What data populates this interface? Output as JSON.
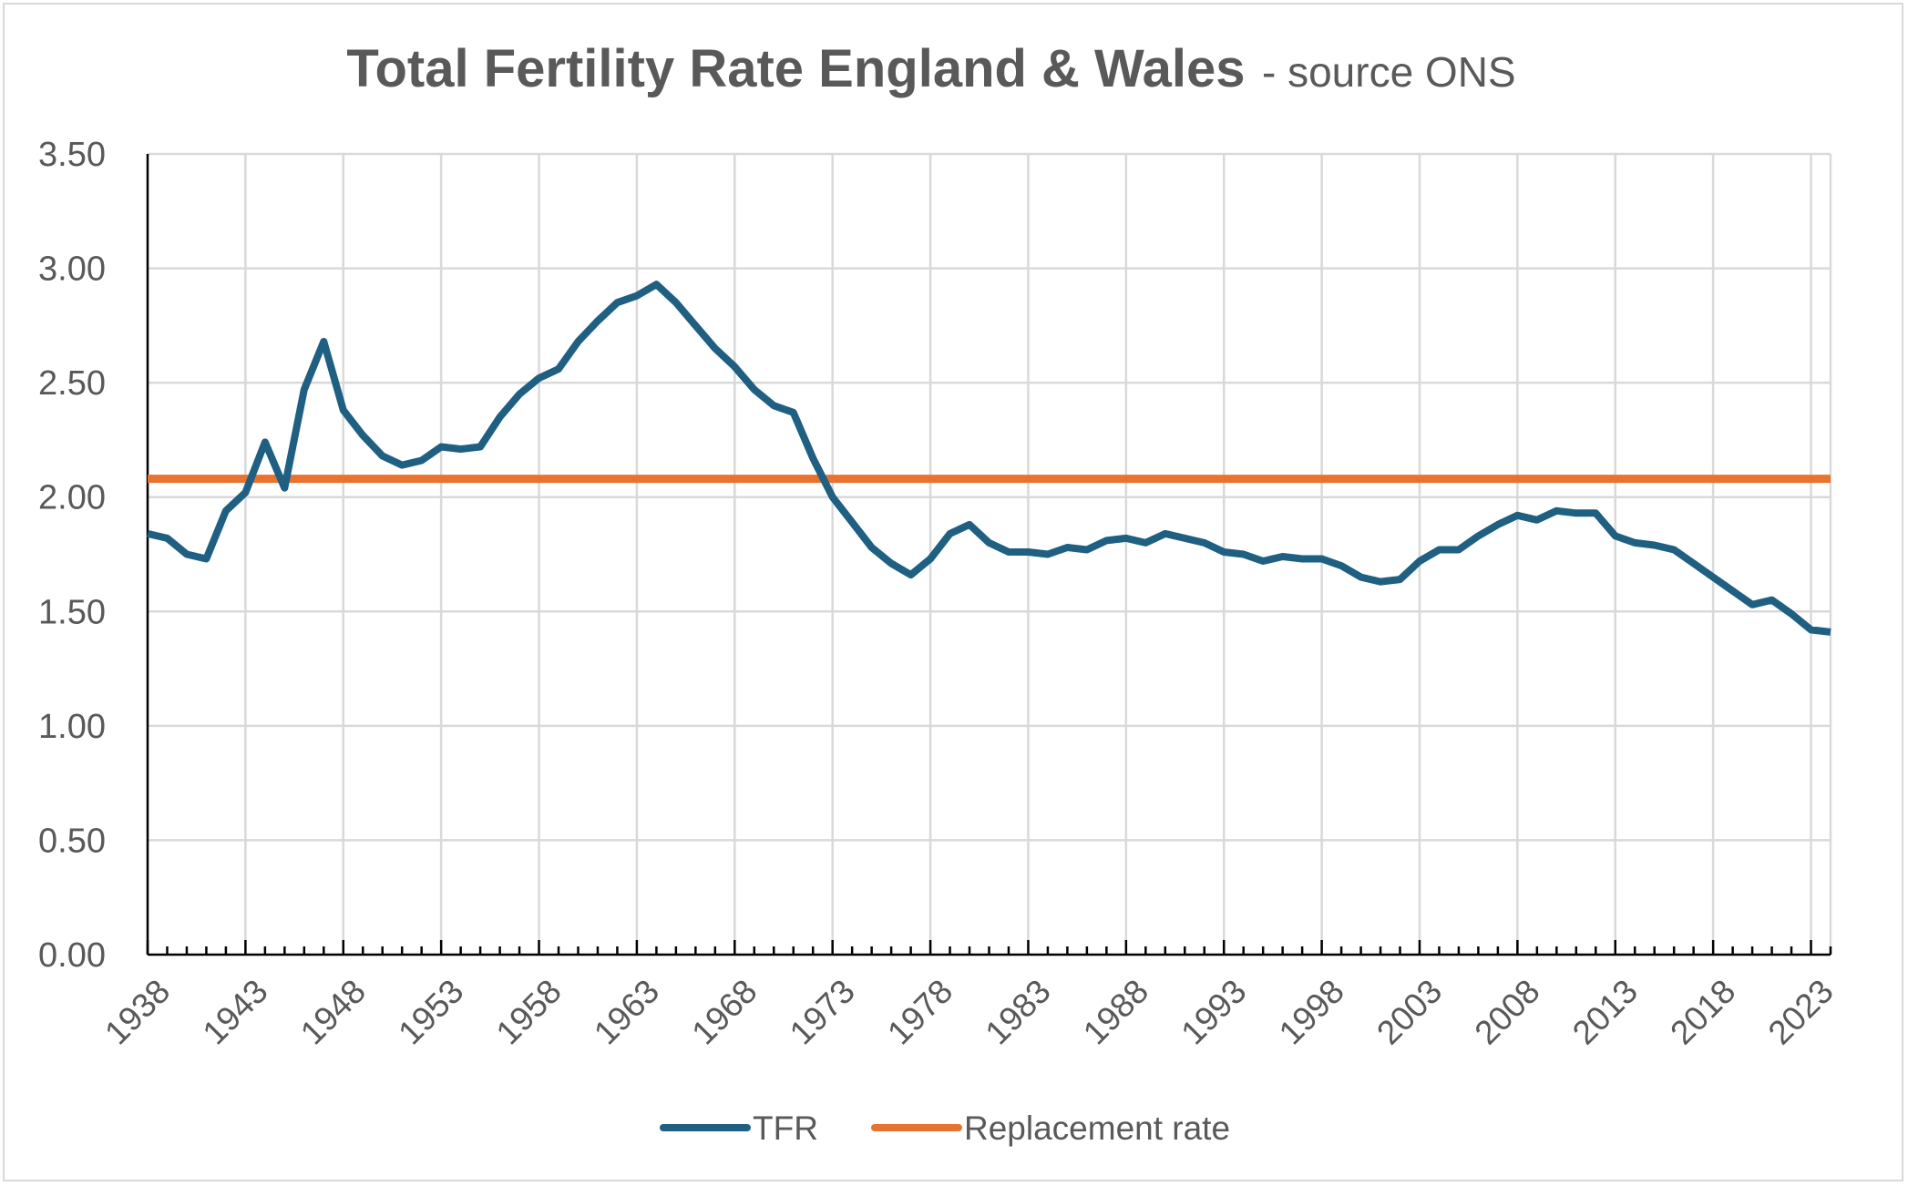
{
  "chart_data": {
    "type": "line",
    "title": "Total Fertility Rate England & Wales",
    "subtitle": "- source ONS",
    "xlabel": "",
    "ylabel": "",
    "xlim": [
      1938,
      2024
    ],
    "ylim": [
      0,
      3.5
    ],
    "y_ticks": [
      "0.00",
      "0.50",
      "1.00",
      "1.50",
      "2.00",
      "2.50",
      "3.00",
      "3.50"
    ],
    "y_tick_values": [
      0,
      0.5,
      1.0,
      1.5,
      2.0,
      2.5,
      3.0,
      3.5
    ],
    "x_ticks": [
      "1938",
      "1943",
      "1948",
      "1953",
      "1958",
      "1963",
      "1968",
      "1973",
      "1978",
      "1983",
      "1988",
      "1993",
      "1998",
      "2003",
      "2008",
      "2013",
      "2018",
      "2023"
    ],
    "x_tick_values": [
      1938,
      1943,
      1948,
      1953,
      1958,
      1963,
      1968,
      1973,
      1978,
      1983,
      1988,
      1993,
      1998,
      2003,
      2008,
      2013,
      2018,
      2023
    ],
    "grid": true,
    "legend_position": "bottom",
    "series": [
      {
        "name": "TFR",
        "color": "#1f5f82",
        "x": [
          1938,
          1939,
          1940,
          1941,
          1942,
          1943,
          1944,
          1945,
          1946,
          1947,
          1948,
          1949,
          1950,
          1951,
          1952,
          1953,
          1954,
          1955,
          1956,
          1957,
          1958,
          1959,
          1960,
          1961,
          1962,
          1963,
          1964,
          1965,
          1966,
          1967,
          1968,
          1969,
          1970,
          1971,
          1972,
          1973,
          1974,
          1975,
          1976,
          1977,
          1978,
          1979,
          1980,
          1981,
          1982,
          1983,
          1984,
          1985,
          1986,
          1987,
          1988,
          1989,
          1990,
          1991,
          1992,
          1993,
          1994,
          1995,
          1996,
          1997,
          1998,
          1999,
          2000,
          2001,
          2002,
          2003,
          2004,
          2005,
          2006,
          2007,
          2008,
          2009,
          2010,
          2011,
          2012,
          2013,
          2014,
          2015,
          2016,
          2017,
          2018,
          2019,
          2020,
          2021,
          2022,
          2023,
          2024
        ],
        "values": [
          1.84,
          1.82,
          1.75,
          1.73,
          1.94,
          2.02,
          2.24,
          2.04,
          2.47,
          2.68,
          2.38,
          2.27,
          2.18,
          2.14,
          2.16,
          2.22,
          2.21,
          2.22,
          2.35,
          2.45,
          2.52,
          2.56,
          2.68,
          2.77,
          2.85,
          2.88,
          2.93,
          2.85,
          2.75,
          2.65,
          2.57,
          2.47,
          2.4,
          2.37,
          2.17,
          2.0,
          1.89,
          1.78,
          1.71,
          1.66,
          1.73,
          1.84,
          1.88,
          1.8,
          1.76,
          1.76,
          1.75,
          1.78,
          1.77,
          1.81,
          1.82,
          1.8,
          1.84,
          1.82,
          1.8,
          1.76,
          1.75,
          1.72,
          1.74,
          1.73,
          1.73,
          1.7,
          1.65,
          1.63,
          1.64,
          1.72,
          1.77,
          1.77,
          1.83,
          1.88,
          1.92,
          1.9,
          1.94,
          1.93,
          1.93,
          1.83,
          1.8,
          1.79,
          1.77,
          1.71,
          1.65,
          1.59,
          1.53,
          1.55,
          1.49,
          1.42,
          1.41
        ]
      },
      {
        "name": "Replacement rate",
        "color": "#e8732e",
        "x": [
          1938,
          2024
        ],
        "values": [
          2.08,
          2.08
        ]
      }
    ]
  }
}
